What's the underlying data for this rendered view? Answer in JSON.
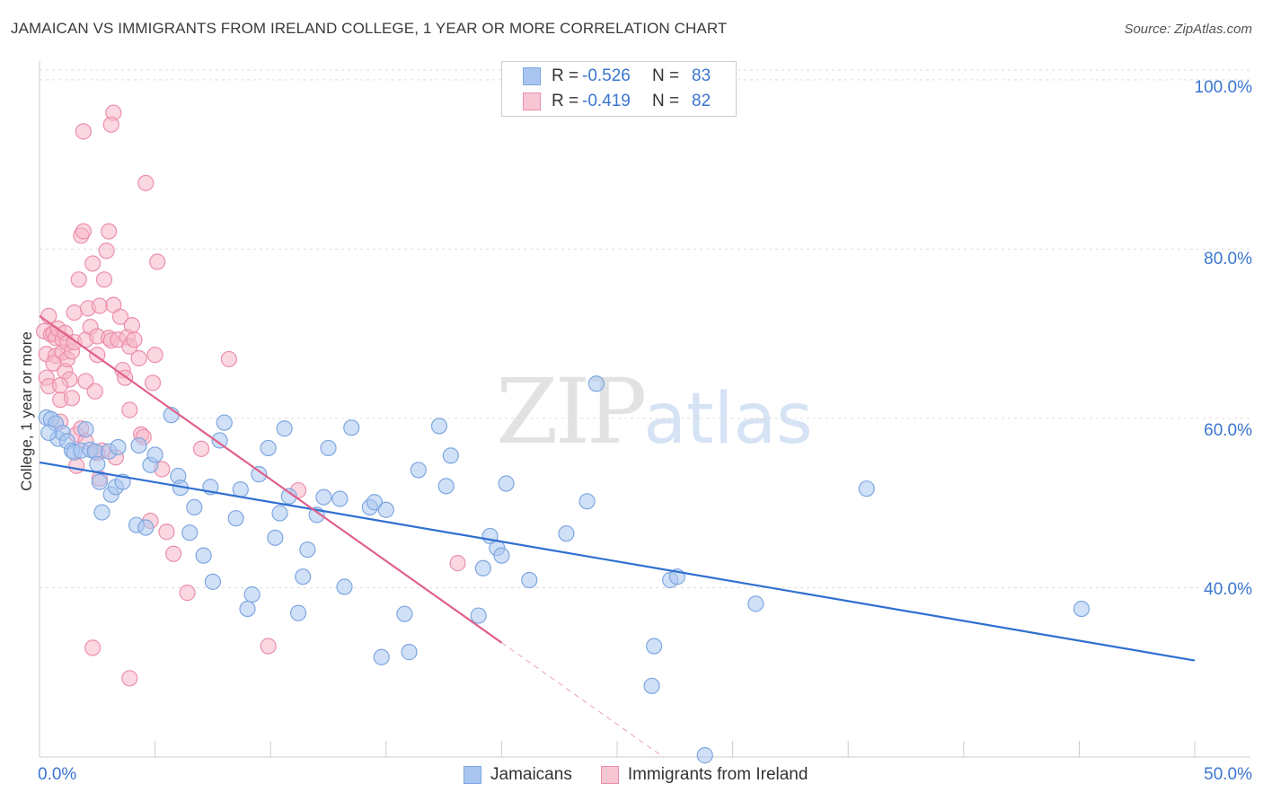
{
  "title": "JAMAICAN VS IMMIGRANTS FROM IRELAND COLLEGE, 1 YEAR OR MORE CORRELATION CHART",
  "source": "Source: ZipAtlas.com",
  "watermark": {
    "zip": "ZIP",
    "atlas": "atlas"
  },
  "legend": {
    "series1": {
      "r_label": "R =",
      "r_value": "-0.526",
      "n_label": "N =",
      "n_value": "83",
      "name": "Jamaicans"
    },
    "series2": {
      "r_label": "R =",
      "r_value": "-0.419",
      "n_label": "N =",
      "n_value": "82",
      "name": "Immigrants from Ireland"
    }
  },
  "colors": {
    "jamaicans_fill": "#a9c6f0",
    "jamaicans_stroke": "#7ea7e0",
    "jamaicans_line": "#2f6fd0",
    "ireland_fill": "#f6b6c8",
    "ireland_stroke": "#ec8fab",
    "ireland_line": "#e0608a",
    "axis_text": "#3b76d0",
    "grid": "#dddddd"
  },
  "chart_data": {
    "type": "scatter",
    "title": "JAMAICAN VS IMMIGRANTS FROM IRELAND COLLEGE, 1 YEAR OR MORE CORRELATION CHART",
    "xlabel": "",
    "ylabel": "College, 1 year or more",
    "xlim": [
      0,
      50
    ],
    "ylim": [
      20,
      102
    ],
    "x_tick_labels": [
      "0.0%",
      "50.0%"
    ],
    "y_ticks": [
      40,
      60,
      80,
      100
    ],
    "y_tick_labels": [
      "40.0%",
      "60.0%",
      "80.0%",
      "100.0%"
    ],
    "series": [
      {
        "name": "Jamaicans",
        "r": -0.526,
        "n": 83,
        "trend": {
          "x": [
            0,
            50
          ],
          "y": [
            54.8,
            31.4
          ],
          "solid_until": 50
        },
        "points": [
          [
            0.3,
            60.1
          ],
          [
            0.5,
            59.9
          ],
          [
            0.7,
            59.4
          ],
          [
            0.8,
            57.6
          ],
          [
            1.0,
            58.3
          ],
          [
            1.2,
            57.3
          ],
          [
            1.4,
            56.2
          ],
          [
            1.5,
            56.0
          ],
          [
            1.8,
            56.2
          ],
          [
            2.0,
            58.7
          ],
          [
            2.2,
            56.3
          ],
          [
            2.4,
            56.1
          ],
          [
            2.5,
            54.6
          ],
          [
            2.6,
            52.5
          ],
          [
            2.7,
            48.9
          ],
          [
            3.0,
            56.1
          ],
          [
            3.1,
            51.0
          ],
          [
            3.3,
            51.9
          ],
          [
            3.4,
            56.6
          ],
          [
            3.6,
            52.5
          ],
          [
            4.2,
            47.4
          ],
          [
            4.3,
            56.8
          ],
          [
            4.6,
            47.1
          ],
          [
            4.8,
            54.5
          ],
          [
            5.0,
            55.7
          ],
          [
            5.7,
            60.4
          ],
          [
            6.0,
            53.2
          ],
          [
            6.1,
            51.8
          ],
          [
            6.5,
            46.5
          ],
          [
            6.7,
            49.5
          ],
          [
            7.1,
            43.8
          ],
          [
            7.4,
            51.9
          ],
          [
            7.5,
            40.7
          ],
          [
            7.8,
            57.4
          ],
          [
            8.0,
            59.5
          ],
          [
            8.5,
            48.2
          ],
          [
            8.7,
            51.6
          ],
          [
            9.0,
            37.5
          ],
          [
            9.2,
            39.2
          ],
          [
            9.5,
            53.4
          ],
          [
            9.9,
            56.5
          ],
          [
            10.2,
            45.9
          ],
          [
            10.4,
            48.8
          ],
          [
            10.6,
            58.8
          ],
          [
            10.8,
            50.8
          ],
          [
            11.2,
            37.0
          ],
          [
            11.4,
            41.3
          ],
          [
            11.6,
            44.5
          ],
          [
            12.0,
            48.6
          ],
          [
            12.3,
            50.7
          ],
          [
            12.5,
            56.5
          ],
          [
            13.0,
            50.5
          ],
          [
            13.2,
            40.1
          ],
          [
            13.5,
            58.9
          ],
          [
            14.3,
            49.5
          ],
          [
            14.5,
            50.1
          ],
          [
            14.8,
            31.8
          ],
          [
            15.0,
            49.2
          ],
          [
            15.8,
            36.9
          ],
          [
            16.0,
            32.4
          ],
          [
            16.4,
            53.9
          ],
          [
            17.3,
            59.1
          ],
          [
            17.6,
            52.0
          ],
          [
            17.8,
            55.6
          ],
          [
            19.0,
            36.7
          ],
          [
            19.2,
            42.3
          ],
          [
            19.5,
            46.1
          ],
          [
            19.8,
            44.7
          ],
          [
            20.0,
            43.8
          ],
          [
            20.2,
            52.3
          ],
          [
            21.2,
            40.9
          ],
          [
            22.8,
            46.4
          ],
          [
            23.7,
            50.2
          ],
          [
            24.1,
            64.1
          ],
          [
            26.5,
            28.4
          ],
          [
            26.6,
            33.1
          ],
          [
            27.3,
            40.9
          ],
          [
            27.6,
            41.3
          ],
          [
            31.0,
            38.1
          ],
          [
            35.8,
            51.7
          ],
          [
            45.1,
            37.5
          ],
          [
            28.8,
            20.2
          ],
          [
            0.4,
            58.3
          ]
        ]
      },
      {
        "name": "Immigrants from Ireland",
        "r": -0.419,
        "n": 82,
        "trend": {
          "x": [
            0,
            27
          ],
          "y": [
            72.1,
            20.0
          ],
          "solid_until": 20
        },
        "points": [
          [
            0.2,
            70.3
          ],
          [
            0.3,
            67.6
          ],
          [
            0.3,
            64.8
          ],
          [
            0.4,
            63.8
          ],
          [
            0.4,
            72.1
          ],
          [
            0.5,
            69.9
          ],
          [
            0.6,
            70.0
          ],
          [
            0.7,
            69.5
          ],
          [
            0.7,
            67.4
          ],
          [
            0.8,
            70.6
          ],
          [
            0.9,
            62.2
          ],
          [
            0.9,
            59.6
          ],
          [
            1.0,
            69.3
          ],
          [
            1.0,
            67.8
          ],
          [
            1.1,
            70.1
          ],
          [
            1.1,
            65.6
          ],
          [
            1.2,
            67.0
          ],
          [
            1.2,
            68.9
          ],
          [
            1.3,
            64.6
          ],
          [
            1.4,
            67.9
          ],
          [
            1.5,
            69.0
          ],
          [
            1.5,
            72.5
          ],
          [
            1.6,
            58.1
          ],
          [
            1.7,
            76.4
          ],
          [
            1.8,
            81.6
          ],
          [
            1.8,
            58.8
          ],
          [
            1.9,
            82.1
          ],
          [
            2.0,
            64.4
          ],
          [
            2.0,
            69.3
          ],
          [
            2.1,
            73.0
          ],
          [
            2.2,
            70.8
          ],
          [
            2.3,
            78.3
          ],
          [
            2.4,
            63.2
          ],
          [
            2.5,
            69.7
          ],
          [
            2.5,
            67.5
          ],
          [
            2.6,
            73.3
          ],
          [
            2.7,
            56.2
          ],
          [
            2.8,
            76.4
          ],
          [
            2.9,
            79.8
          ],
          [
            3.0,
            69.5
          ],
          [
            3.0,
            82.1
          ],
          [
            3.1,
            69.2
          ],
          [
            3.2,
            73.4
          ],
          [
            3.3,
            55.4
          ],
          [
            3.4,
            69.3
          ],
          [
            3.5,
            72.0
          ],
          [
            3.6,
            65.7
          ],
          [
            3.7,
            64.8
          ],
          [
            3.8,
            69.6
          ],
          [
            3.9,
            68.5
          ],
          [
            3.9,
            61.0
          ],
          [
            4.0,
            71.0
          ],
          [
            4.1,
            69.3
          ],
          [
            4.3,
            67.1
          ],
          [
            4.4,
            58.1
          ],
          [
            4.5,
            57.8
          ],
          [
            4.6,
            87.8
          ],
          [
            4.8,
            47.9
          ],
          [
            4.9,
            64.2
          ],
          [
            5.0,
            67.5
          ],
          [
            5.1,
            78.5
          ],
          [
            5.3,
            54.0
          ],
          [
            5.5,
            46.6
          ],
          [
            5.8,
            44.0
          ],
          [
            6.4,
            39.4
          ],
          [
            7.0,
            56.4
          ],
          [
            8.2,
            67.0
          ],
          [
            9.9,
            33.1
          ],
          [
            11.2,
            51.5
          ],
          [
            18.1,
            42.9
          ],
          [
            2.3,
            32.9
          ],
          [
            3.9,
            29.3
          ],
          [
            1.9,
            93.9
          ],
          [
            3.2,
            96.1
          ],
          [
            3.1,
            94.7
          ],
          [
            2.5,
            55.9
          ],
          [
            1.6,
            54.4
          ],
          [
            0.9,
            63.9
          ],
          [
            0.6,
            66.5
          ],
          [
            1.4,
            62.4
          ],
          [
            2.0,
            57.3
          ],
          [
            2.6,
            52.9
          ]
        ]
      }
    ]
  }
}
